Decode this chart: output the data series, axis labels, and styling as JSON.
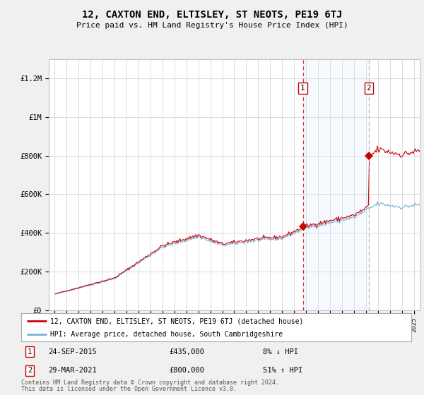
{
  "title": "12, CAXTON END, ELTISLEY, ST NEOTS, PE19 6TJ",
  "subtitle": "Price paid vs. HM Land Registry's House Price Index (HPI)",
  "ylabel_ticks": [
    "£0",
    "£200K",
    "£400K",
    "£600K",
    "£800K",
    "£1M",
    "£1.2M"
  ],
  "ytick_values": [
    0,
    200000,
    400000,
    600000,
    800000,
    1000000,
    1200000
  ],
  "ylim": [
    0,
    1300000
  ],
  "xlim_start": 1994.5,
  "xlim_end": 2025.5,
  "transaction1": {
    "date": "24-SEP-2015",
    "price": 435000,
    "label": "1",
    "year": 2015.73
  },
  "transaction2": {
    "date": "29-MAR-2021",
    "price": 800000,
    "label": "2",
    "year": 2021.23
  },
  "legend1_label": "12, CAXTON END, ELTISLEY, ST NEOTS, PE19 6TJ (detached house)",
  "legend2_label": "HPI: Average price, detached house, South Cambridgeshire",
  "footer1": "Contains HM Land Registry data © Crown copyright and database right 2024.",
  "footer2": "This data is licensed under the Open Government Licence v3.0.",
  "annot1_label": "8% ↓ HPI",
  "annot2_label": "51% ↑ HPI",
  "line_color_red": "#cc0000",
  "line_color_blue": "#7bafd4",
  "shade_color": "#ddeeff",
  "bg_color": "#f0f0f0",
  "plot_bg_color": "#ffffff",
  "grid_color": "#cccccc"
}
